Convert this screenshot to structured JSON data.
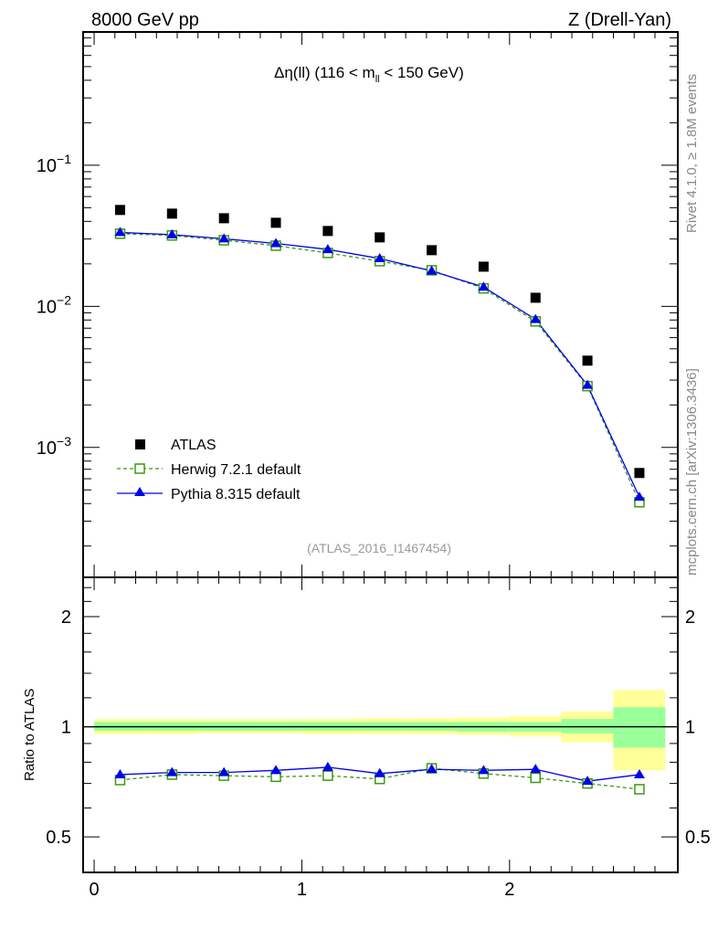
{
  "header": {
    "left": "8000 GeV pp",
    "right": "Z (Drell-Yan)"
  },
  "side_labels": {
    "rivet": "Rivet 4.1.0, ≥ 1.8M events",
    "mcplots": "mcplots.cern.ch [arXiv:1306.3436]"
  },
  "chart_data": [
    {
      "type": "scatter",
      "title_parts": {
        "delta_eta": "Δη(ll) (116 < m",
        "sub": "ll",
        "rest": " < 150 GeV)"
      },
      "analysis_label": "(ATLAS_2016_I1467454)",
      "yscale": "log",
      "ylim": [
        0.00012,
        0.88
      ],
      "xlim": [
        -0.053,
        2.81
      ],
      "yticks": [
        {
          "v": 0.1,
          "base": "10",
          "exp": "−1"
        },
        {
          "v": 0.01,
          "base": "10",
          "exp": "−2"
        },
        {
          "v": 0.001,
          "base": "10",
          "exp": "−3"
        }
      ],
      "legend_position": "bottom-left",
      "x": [
        0.125,
        0.375,
        0.625,
        0.875,
        1.125,
        1.375,
        1.625,
        1.875,
        2.125,
        2.375,
        2.625
      ],
      "series": [
        {
          "name": "ATLAS",
          "color": "#000000",
          "marker": "square",
          "values": [
            0.0482,
            0.0454,
            0.0421,
            0.0391,
            0.0342,
            0.0308,
            0.025,
            0.0191,
            0.0115,
            0.00412,
            0.000659
          ]
        },
        {
          "name": "Herwig 7.2.1 default",
          "color": "#3a9a10",
          "marker": "open-square",
          "dashed": true,
          "values": [
            0.0327,
            0.0318,
            0.0294,
            0.0269,
            0.0239,
            0.0209,
            0.018,
            0.0134,
            0.00782,
            0.00272,
            0.000409
          ]
        },
        {
          "name": "Pythia 8.315 default",
          "color": "#0000ee",
          "marker": "triangle",
          "values": [
            0.0334,
            0.0322,
            0.0301,
            0.0279,
            0.0253,
            0.0218,
            0.0178,
            0.0137,
            0.00808,
            0.00276,
            0.000445
          ]
        }
      ]
    },
    {
      "type": "scatter",
      "ylabel": "Ratio to ATLAS",
      "yscale": "log",
      "ylim": [
        0.4,
        2.56
      ],
      "xlim": [
        -0.053,
        2.81
      ],
      "yticks": [
        {
          "v": 2,
          "label": "2"
        },
        {
          "v": 1,
          "label": "1"
        },
        {
          "v": 0.5,
          "label": "0.5"
        }
      ],
      "xticks": [
        {
          "v": 0,
          "label": "0"
        },
        {
          "v": 1,
          "label": "1"
        },
        {
          "v": 2,
          "label": "2"
        }
      ],
      "bin_edges": [
        0,
        0.25,
        0.5,
        0.75,
        1.0,
        1.25,
        1.5,
        1.75,
        2.0,
        2.25,
        2.5,
        2.75
      ],
      "band_yellow": [
        [
          0.955,
          1.05
        ],
        [
          0.955,
          1.05
        ],
        [
          0.96,
          1.05
        ],
        [
          0.96,
          1.05
        ],
        [
          0.955,
          1.05
        ],
        [
          0.955,
          1.055
        ],
        [
          0.955,
          1.055
        ],
        [
          0.95,
          1.06
        ],
        [
          0.94,
          1.07
        ],
        [
          0.907,
          1.1
        ],
        [
          0.76,
          1.26
        ]
      ],
      "band_green": [
        [
          0.975,
          1.03
        ],
        [
          0.975,
          1.03
        ],
        [
          0.975,
          1.03
        ],
        [
          0.975,
          1.03
        ],
        [
          0.975,
          1.03
        ],
        [
          0.975,
          1.03
        ],
        [
          0.975,
          1.03
        ],
        [
          0.97,
          1.03
        ],
        [
          0.97,
          1.03
        ],
        [
          0.96,
          1.05
        ],
        [
          0.877,
          1.13
        ]
      ],
      "series": [
        {
          "name": "Herwig 7.2.1 default",
          "values": [
            0.715,
            0.74,
            0.735,
            0.73,
            0.735,
            0.72,
            0.77,
            0.745,
            0.725,
            0.7,
            0.675
          ]
        },
        {
          "name": "Pythia 8.315 default",
          "values": [
            0.74,
            0.75,
            0.75,
            0.76,
            0.775,
            0.745,
            0.765,
            0.76,
            0.765,
            0.71,
            0.74
          ]
        }
      ]
    }
  ]
}
